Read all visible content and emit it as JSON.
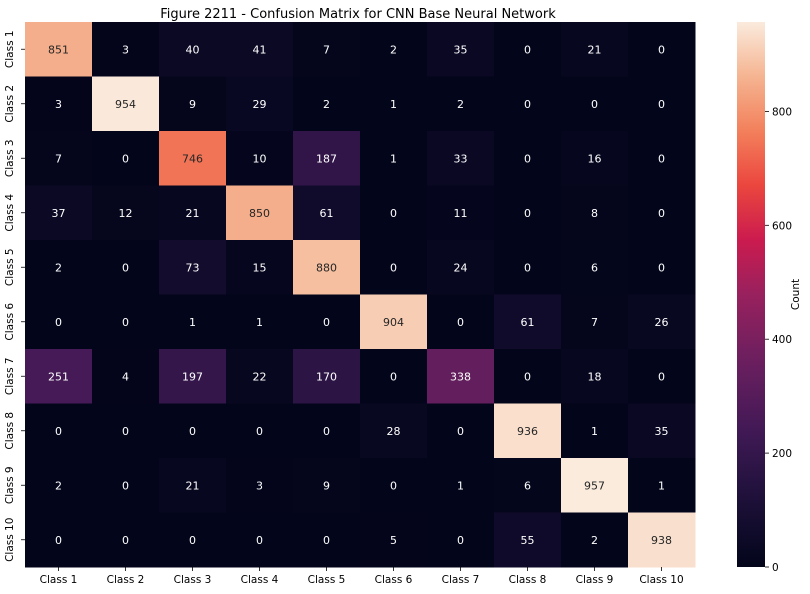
{
  "chart_data": {
    "type": "heatmap",
    "title": "Figure 2211 - Confusion Matrix for CNN Base Neural Network",
    "xlabel": "",
    "ylabel": "",
    "x_labels": [
      "Class 1",
      "Class 2",
      "Class 3",
      "Class 4",
      "Class 5",
      "Class 6",
      "Class 7",
      "Class 8",
      "Class 9",
      "Class 10"
    ],
    "y_labels": [
      "Class 1",
      "Class 2",
      "Class 3",
      "Class 4",
      "Class 5",
      "Class 6",
      "Class 7",
      "Class 8",
      "Class 9",
      "Class 10"
    ],
    "values": [
      [
        851,
        3,
        40,
        41,
        7,
        2,
        35,
        0,
        21,
        0
      ],
      [
        3,
        954,
        9,
        29,
        2,
        1,
        2,
        0,
        0,
        0
      ],
      [
        7,
        0,
        746,
        10,
        187,
        1,
        33,
        0,
        16,
        0
      ],
      [
        37,
        12,
        21,
        850,
        61,
        0,
        11,
        0,
        8,
        0
      ],
      [
        2,
        0,
        73,
        15,
        880,
        0,
        24,
        0,
        6,
        0
      ],
      [
        0,
        0,
        1,
        1,
        0,
        904,
        0,
        61,
        7,
        26
      ],
      [
        251,
        4,
        197,
        22,
        170,
        0,
        338,
        0,
        18,
        0
      ],
      [
        0,
        0,
        0,
        0,
        0,
        28,
        0,
        936,
        1,
        35
      ],
      [
        2,
        0,
        21,
        3,
        9,
        0,
        1,
        6,
        957,
        1
      ],
      [
        0,
        0,
        0,
        0,
        0,
        5,
        0,
        55,
        2,
        938
      ]
    ],
    "colorbar": {
      "label": "Count",
      "range": [
        0,
        957
      ],
      "ticks": [
        0,
        200,
        400,
        600,
        800
      ],
      "colormap": "rocket"
    },
    "grid": false,
    "legend": "colorbar-right"
  }
}
